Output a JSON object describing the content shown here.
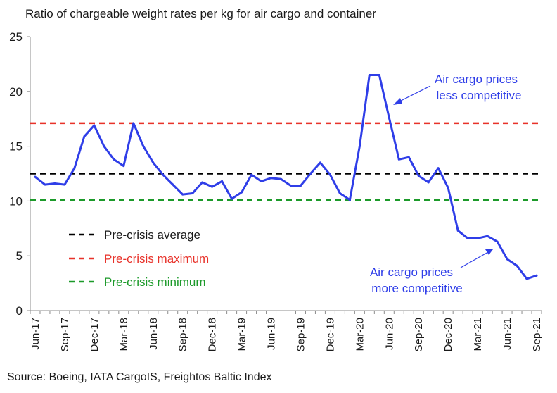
{
  "title": "Ratio of chargeable weight rates per kg for air cargo and container",
  "source": "Source: Boeing, IATA CargoIS, Freightos Baltic Index",
  "colors": {
    "series": "#2f3ee8",
    "average": "#000000",
    "maximum": "#e8322a",
    "minimum": "#1c9a2a",
    "annotation": "#2f3ee8"
  },
  "chart_data": {
    "type": "line",
    "title": "Ratio of chargeable weight rates per kg for air cargo and container",
    "xlabel": "",
    "ylabel": "",
    "ylim": [
      0,
      25
    ],
    "yticks": [
      "0",
      "5",
      "10",
      "15",
      "20",
      "25"
    ],
    "xticks": [
      "Jun-17",
      "Sep-17",
      "Dec-17",
      "Mar-18",
      "Jun-18",
      "Sep-18",
      "Dec-18",
      "Mar-19",
      "Jun-19",
      "Sep-19",
      "Dec-19",
      "Mar-20",
      "Jun-20",
      "Sep-20",
      "Dec-20",
      "Mar-21",
      "Jun-21",
      "Sep-21"
    ],
    "grid": false,
    "legend_position": "lower-left",
    "x": [
      "Jun-17",
      "Jul-17",
      "Aug-17",
      "Sep-17",
      "Oct-17",
      "Nov-17",
      "Dec-17",
      "Jan-18",
      "Feb-18",
      "Mar-18",
      "Apr-18",
      "May-18",
      "Jun-18",
      "Jul-18",
      "Aug-18",
      "Sep-18",
      "Oct-18",
      "Nov-18",
      "Dec-18",
      "Jan-19",
      "Feb-19",
      "Mar-19",
      "Apr-19",
      "May-19",
      "Jun-19",
      "Jul-19",
      "Aug-19",
      "Sep-19",
      "Oct-19",
      "Nov-19",
      "Dec-19",
      "Jan-20",
      "Feb-20",
      "Mar-20",
      "Apr-20",
      "May-20",
      "Jun-20",
      "Jul-20",
      "Aug-20",
      "Sep-20",
      "Oct-20",
      "Nov-20",
      "Dec-20",
      "Jan-21",
      "Feb-21",
      "Mar-21",
      "Apr-21",
      "May-21",
      "Jun-21",
      "Jul-21",
      "Aug-21",
      "Sep-21"
    ],
    "series": [
      {
        "values": [
          12.2,
          11.5,
          11.6,
          11.5,
          13.0,
          15.9,
          16.9,
          15.0,
          13.8,
          13.2,
          17.1,
          15.0,
          13.5,
          12.4,
          11.5,
          10.6,
          10.7,
          11.7,
          11.3,
          11.8,
          10.2,
          10.8,
          12.4,
          11.8,
          12.1,
          12.0,
          11.4,
          11.4,
          12.5,
          13.5,
          12.4,
          10.7,
          10.1,
          15.0,
          21.5,
          21.5,
          17.6,
          13.8,
          14.0,
          12.3,
          11.7,
          13.0,
          11.2,
          7.3,
          6.6,
          6.6,
          6.8,
          6.3,
          4.7,
          4.1,
          2.9,
          3.2
        ]
      }
    ],
    "reference_lines": [
      {
        "name": "Pre-crisis average",
        "value": 12.5
      },
      {
        "name": "Pre-crisis maximum",
        "value": 17.1
      },
      {
        "name": "Pre-crisis minimum",
        "value": 10.1
      }
    ],
    "annotations": [
      {
        "line1": "Air cargo prices",
        "line2": "less competitive"
      },
      {
        "line1": "Air cargo prices",
        "line2": "more competitive"
      }
    ]
  }
}
